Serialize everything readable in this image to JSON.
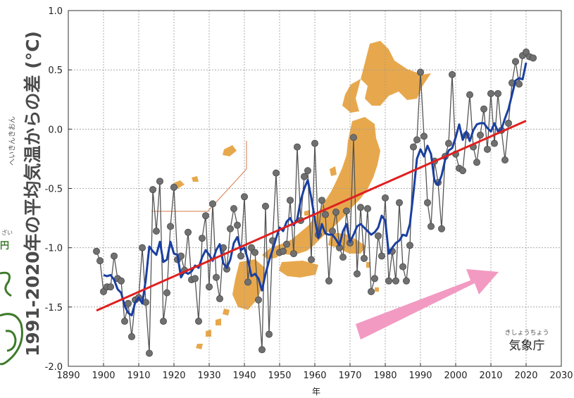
{
  "chart_data": {
    "type": "line",
    "title": "",
    "xlabel": "年",
    "ylabel": "1991-2020年の平均気温からの差 (°C)",
    "ylabel_ruby": "へいきんきおん",
    "xlim": [
      1890,
      2030
    ],
    "ylim": [
      -2.0,
      1.0
    ],
    "x_ticks": [
      1890,
      1900,
      1910,
      1920,
      1930,
      1940,
      1950,
      1960,
      1970,
      1980,
      1990,
      2000,
      2010,
      2020,
      2030
    ],
    "y_ticks": [
      1.0,
      0.5,
      0.0,
      -0.5,
      -1.0,
      -1.5,
      -2.0
    ],
    "y_tick_labels": [
      "1.0",
      "0.5",
      "0.0",
      "-0.5",
      "-1.0",
      "-1.5",
      "-2.0"
    ],
    "grid": true,
    "series": [
      {
        "role": "annual",
        "color": "#555555",
        "marker_color": "#707070",
        "x": [
          1898,
          1899,
          1900,
          1901,
          1902,
          1903,
          1904,
          1905,
          1906,
          1907,
          1908,
          1909,
          1910,
          1911,
          1912,
          1913,
          1914,
          1915,
          1916,
          1917,
          1918,
          1919,
          1920,
          1921,
          1922,
          1923,
          1924,
          1925,
          1926,
          1927,
          1928,
          1929,
          1930,
          1931,
          1932,
          1933,
          1934,
          1935,
          1936,
          1937,
          1938,
          1939,
          1940,
          1941,
          1942,
          1943,
          1944,
          1945,
          1946,
          1947,
          1948,
          1949,
          1950,
          1951,
          1952,
          1953,
          1954,
          1955,
          1956,
          1957,
          1958,
          1959,
          1960,
          1961,
          1962,
          1963,
          1964,
          1965,
          1966,
          1967,
          1968,
          1969,
          1970,
          1971,
          1972,
          1973,
          1974,
          1975,
          1976,
          1977,
          1978,
          1979,
          1980,
          1981,
          1982,
          1983,
          1984,
          1985,
          1986,
          1987,
          1988,
          1989,
          1990,
          1991,
          1992,
          1993,
          1994,
          1995,
          1996,
          1997,
          1998,
          1999,
          2000,
          2001,
          2002,
          2003,
          2004,
          2005,
          2006,
          2007,
          2008,
          2009,
          2010,
          2011,
          2012,
          2013,
          2014,
          2015,
          2016,
          2017,
          2018,
          2019,
          2020,
          2021,
          2022
        ],
        "values": [
          -1.03,
          -1.11,
          -1.37,
          -1.33,
          -1.33,
          -1.07,
          -1.26,
          -1.28,
          -1.62,
          -1.47,
          -1.75,
          -1.44,
          -1.42,
          -1.0,
          -1.46,
          -1.89,
          -0.51,
          -0.86,
          -0.44,
          -1.62,
          -1.38,
          -0.82,
          -0.49,
          -1.1,
          -1.07,
          -1.19,
          -0.87,
          -1.27,
          -1.26,
          -1.62,
          -0.92,
          -0.73,
          -1.33,
          -0.63,
          -1.25,
          -1.43,
          -1.0,
          -1.18,
          -0.84,
          -0.67,
          -0.81,
          -1.07,
          -0.57,
          -1.29,
          -1.0,
          -1.04,
          -1.44,
          -1.86,
          -0.65,
          -1.73,
          -0.94,
          -0.37,
          -1.04,
          -1.03,
          -0.97,
          -0.6,
          -1.05,
          -0.15,
          -0.77,
          -0.4,
          -0.35,
          -1.1,
          -0.12,
          -0.89,
          -0.6,
          -0.72,
          -1.28,
          -0.86,
          -0.7,
          -1.0,
          -1.08,
          -0.69,
          -0.96,
          -0.07,
          -1.22,
          -0.66,
          -1.09,
          -0.67,
          -1.37,
          -1.26,
          -0.9,
          -1.07,
          -0.58,
          -1.28,
          -1.03,
          -1.28,
          -0.62,
          -1.16,
          -1.28,
          -0.98,
          -0.15,
          -0.09,
          0.48,
          -0.06,
          -0.62,
          -0.82,
          -0.27,
          -0.45,
          -0.84,
          -0.23,
          -0.12,
          0.46,
          -0.21,
          -0.33,
          -0.35,
          -0.05,
          0.29,
          -0.15,
          -0.28,
          -0.05,
          0.17,
          -0.17,
          0.3,
          -0.12,
          0.3,
          -0.01,
          -0.26,
          0.05,
          0.39,
          0.57,
          0.38,
          0.62,
          0.65,
          0.61,
          0.6
        ],
        "marker": "circle"
      },
      {
        "role": "5-year running mean",
        "color": "#1a3fa0",
        "x": [
          1900,
          1901,
          1902,
          1903,
          1904,
          1905,
          1906,
          1907,
          1908,
          1909,
          1910,
          1911,
          1912,
          1913,
          1914,
          1915,
          1916,
          1917,
          1918,
          1919,
          1920,
          1921,
          1922,
          1923,
          1924,
          1925,
          1926,
          1927,
          1928,
          1929,
          1930,
          1931,
          1932,
          1933,
          1934,
          1935,
          1936,
          1937,
          1938,
          1939,
          1940,
          1941,
          1942,
          1943,
          1944,
          1945,
          1946,
          1947,
          1948,
          1949,
          1950,
          1951,
          1952,
          1953,
          1954,
          1955,
          1956,
          1957,
          1958,
          1959,
          1960,
          1961,
          1962,
          1963,
          1964,
          1965,
          1966,
          1967,
          1968,
          1969,
          1970,
          1971,
          1972,
          1973,
          1974,
          1975,
          1976,
          1977,
          1978,
          1979,
          1980,
          1981,
          1982,
          1983,
          1984,
          1985,
          1986,
          1987,
          1988,
          1989,
          1990,
          1991,
          1992,
          1993,
          1994,
          1995,
          1996,
          1997,
          1998,
          1999,
          2000,
          2001,
          2002,
          2003,
          2004,
          2005,
          2006,
          2007,
          2008,
          2009,
          2010,
          2011,
          2012,
          2013,
          2014,
          2015,
          2016,
          2017,
          2018,
          2019,
          2020
        ],
        "values": [
          -1.23,
          -1.24,
          -1.23,
          -1.27,
          -1.35,
          -1.38,
          -1.49,
          -1.55,
          -1.57,
          -1.46,
          -1.42,
          -1.47,
          -1.27,
          -0.99,
          -1.03,
          -1.06,
          -0.95,
          -1.12,
          -1.1,
          -0.95,
          -1.05,
          -1.06,
          -1.25,
          -1.2,
          -1.22,
          -1.2,
          -1.15,
          -1.17,
          -1.08,
          -1.02,
          -1.06,
          -1.11,
          -1.02,
          -0.97,
          -1.13,
          -1.17,
          -1.1,
          -0.96,
          -0.91,
          -1.02,
          -1.0,
          -1.1,
          -1.24,
          -1.22,
          -1.26,
          -1.36,
          -1.22,
          -1.11,
          -1.02,
          -0.92,
          -0.83,
          -0.86,
          -0.78,
          -0.75,
          -0.81,
          -0.76,
          -0.6,
          -0.5,
          -0.43,
          -0.58,
          -0.76,
          -0.92,
          -0.8,
          -0.88,
          -0.89,
          -0.89,
          -0.93,
          -0.98,
          -0.86,
          -0.8,
          -0.95,
          -0.89,
          -0.82,
          -0.8,
          -0.83,
          -0.86,
          -0.89,
          -0.87,
          -0.83,
          -0.73,
          -0.77,
          -1.05,
          -1.0,
          -0.96,
          -0.94,
          -0.89,
          -0.9,
          -0.8,
          -0.54,
          -0.25,
          -0.17,
          -0.23,
          -0.14,
          -0.21,
          -0.44,
          -0.47,
          -0.39,
          -0.26,
          -0.18,
          -0.16,
          -0.07,
          0.04,
          -0.09,
          -0.02,
          -0.1,
          -0.01,
          0.04,
          0.05,
          0.05,
          0.01,
          -0.02,
          0.05,
          -0.02,
          0.0,
          0.09,
          0.17,
          0.29,
          0.41,
          0.43,
          0.42,
          0.56
        ]
      },
      {
        "role": "trend",
        "color": "#e02020",
        "x": [
          1898,
          2020
        ],
        "values": [
          -1.53,
          0.07
        ]
      }
    ],
    "annotations": {
      "credit": "気象庁",
      "credit_ruby": "きしょうちょう",
      "left_cut_text": "円",
      "left_cut_ruby": "ざい"
    }
  },
  "colors": {
    "map_fill": "#e7a84d",
    "arrow_fill": "#f29ac2",
    "frame": "#333333",
    "grid": "#999999",
    "ylabel_text": "#4a4a4a"
  }
}
